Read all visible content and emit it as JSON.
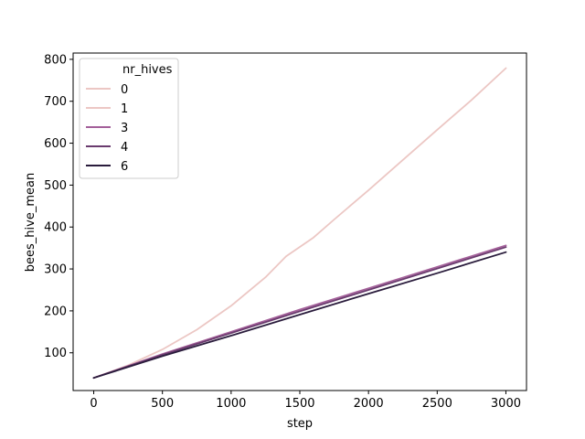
{
  "chart_data": {
    "type": "line",
    "xlabel": "step",
    "ylabel": "bees_hive_mean",
    "xlim": [
      -150,
      3150
    ],
    "ylim": [
      10,
      815
    ],
    "xticks": [
      0,
      500,
      1000,
      1500,
      2000,
      2500,
      3000
    ],
    "yticks": [
      100,
      200,
      300,
      400,
      500,
      600,
      700,
      800
    ],
    "grid": false,
    "legend": {
      "title": "nr_hives",
      "placement": "top-left",
      "entries": [
        {
          "label": "0",
          "color": "#ecc7c4"
        },
        {
          "label": "1",
          "color": "#ecc7c4"
        },
        {
          "label": "3",
          "color": "#a4609a"
        },
        {
          "label": "4",
          "color": "#6a3b6e"
        },
        {
          "label": "6",
          "color": "#2a1c3c"
        }
      ]
    },
    "series": [
      {
        "name": "1",
        "color": "#ecc7c4",
        "x": [
          0,
          250,
          500,
          750,
          1000,
          1250,
          1400,
          1600,
          1750,
          2000,
          2250,
          2500,
          2750,
          3000
        ],
        "y": [
          40,
          70,
          108,
          155,
          212,
          280,
          330,
          375,
          418,
          488,
          560,
          632,
          703,
          779
        ]
      },
      {
        "name": "3",
        "color": "#a4609a",
        "x": [
          0,
          500,
          1000,
          1500,
          2000,
          2500,
          3000
        ],
        "y": [
          40,
          97,
          150,
          203,
          254,
          305,
          356
        ]
      },
      {
        "name": "4",
        "color": "#6a3b6e",
        "x": [
          0,
          500,
          1000,
          1500,
          2000,
          2500,
          3000
        ],
        "y": [
          40,
          95,
          147,
          199,
          250,
          301,
          352
        ]
      },
      {
        "name": "6",
        "color": "#2a1c3c",
        "x": [
          0,
          500,
          1000,
          1500,
          2000,
          2500,
          3000
        ],
        "y": [
          40,
          92,
          141,
          191,
          241,
          290,
          340
        ]
      }
    ]
  }
}
